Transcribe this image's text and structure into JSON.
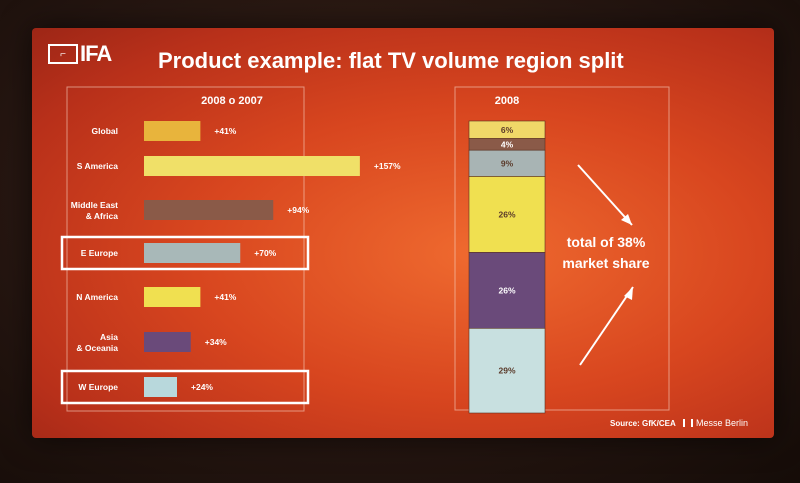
{
  "logo_text": "IFA",
  "title": "Product example: flat TV volume region split",
  "source": "Source: GfK/CEA",
  "brand": "Messe Berlin",
  "annotation": {
    "line1": "total of 38%",
    "line2": "market share"
  },
  "colors": {
    "background": "#d8461f",
    "text": "#ffffff"
  },
  "chart_data": [
    {
      "type": "bar",
      "orientation": "horizontal",
      "title": "2008 o 2007",
      "categories": [
        "Global",
        "S America",
        "Middle East & Africa",
        "E Europe",
        "N America",
        "Asia & Oceania",
        "W Europe"
      ],
      "category_lines": [
        [
          "Global"
        ],
        [
          "S America"
        ],
        [
          "Middle East",
          "& Africa"
        ],
        [
          "E Europe"
        ],
        [
          "N America"
        ],
        [
          "Asia",
          "& Oceania"
        ],
        [
          "W Europe"
        ]
      ],
      "values": [
        41,
        157,
        94,
        70,
        41,
        34,
        24
      ],
      "labels": [
        "+41%",
        "+157%",
        "+94%",
        "+70%",
        "+41%",
        "+34%",
        "+24%"
      ],
      "highlighted": [
        "E Europe",
        "W Europe"
      ],
      "colors": [
        "#e8b43c",
        "#f0e068",
        "#8a5a48",
        "#a8b8b8",
        "#f0e050",
        "#6a4a7a",
        "#b8d8dc"
      ],
      "xlim": [
        0,
        160
      ]
    },
    {
      "type": "bar",
      "stacked": true,
      "title": "2008",
      "segments": [
        {
          "label": "6%",
          "value": 6,
          "color": "#f0d868"
        },
        {
          "label": "4%",
          "value": 4,
          "color": "#8a5a48"
        },
        {
          "label": "9%",
          "value": 9,
          "color": "#a8b4b4"
        },
        {
          "label": "26%",
          "value": 26,
          "color": "#f0e050"
        },
        {
          "label": "26%",
          "value": 26,
          "color": "#6a4a7a"
        },
        {
          "label": "29%",
          "value": 29,
          "color": "#c8e0e0"
        }
      ]
    }
  ]
}
